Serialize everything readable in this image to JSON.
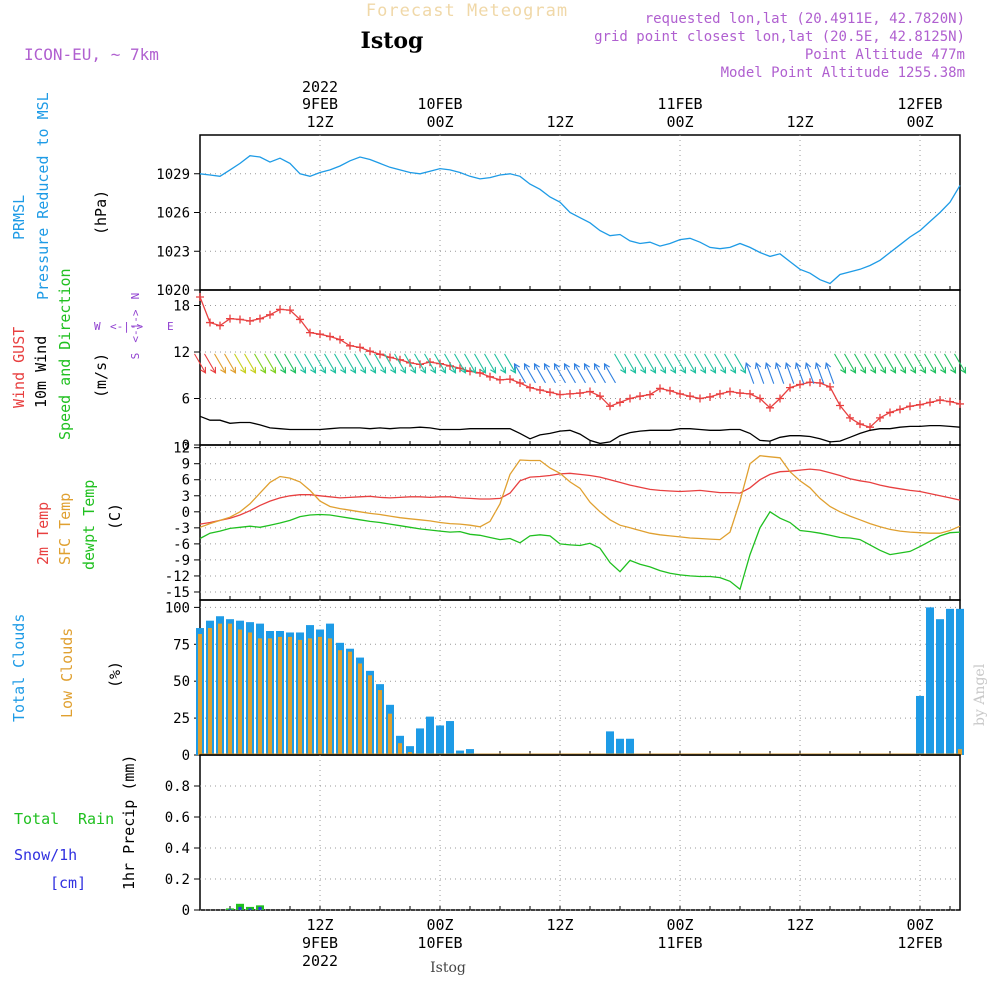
{
  "header": {
    "title": "Forecast Meteogram",
    "location": "Istog",
    "model": "ICON-EU, ~ 7km",
    "requested": "requested lon,lat (20.4911E, 42.7820N)",
    "grid_point": "grid point closest lon,lat (20.5E, 42.8125N)",
    "point_altitude": "Point Altitude 477m",
    "model_altitude": "Model Point Altitude 1255.38m",
    "credit": "by Angel",
    "footer_location": "Istog"
  },
  "colors": {
    "prmsl": "#1e9be6",
    "gust": "#e84040",
    "wind": "#000000",
    "sfc": "#e0a030",
    "dewpt": "#20c020",
    "total_cloud": "#1e9be6",
    "low_cloud": "#e0a030",
    "rain": "#20c020",
    "snow": "#3030e0",
    "axis_label": "#9040d0"
  },
  "top_time_labels": [
    {
      "hour": "12Z",
      "date": "9FEB",
      "year": "2022",
      "t": 12
    },
    {
      "hour": "00Z",
      "date": "10FEB",
      "year": "",
      "t": 24
    },
    {
      "hour": "12Z",
      "date": "",
      "year": "",
      "t": 36
    },
    {
      "hour": "00Z",
      "date": "11FEB",
      "year": "",
      "t": 48
    },
    {
      "hour": "12Z",
      "date": "",
      "year": "",
      "t": 60
    },
    {
      "hour": "00Z",
      "date": "12FEB",
      "year": "",
      "t": 72
    }
  ],
  "chart_data": [
    {
      "type": "line",
      "title": "PRMSL Pressure Reduced to MSL",
      "ylabel": "(hPa)",
      "ylim": [
        1020,
        1032
      ],
      "yticks": [
        1020,
        1023,
        1026,
        1029
      ],
      "x_hours": [
        0,
        1,
        2,
        3,
        4,
        5,
        6,
        7,
        8,
        9,
        10,
        11,
        12,
        13,
        14,
        15,
        16,
        17,
        18,
        19,
        20,
        21,
        22,
        23,
        24,
        25,
        26,
        27,
        28,
        29,
        30,
        31,
        32,
        33,
        34,
        35,
        36,
        37,
        38,
        39,
        40,
        41,
        42,
        43,
        44,
        45,
        46,
        47,
        48,
        49,
        50,
        51,
        52,
        53,
        54,
        55,
        56,
        57,
        58,
        59,
        60,
        61,
        62,
        63,
        64,
        65,
        66,
        67,
        68,
        69,
        70,
        71,
        72,
        73,
        74,
        75,
        76
      ],
      "series": [
        {
          "name": "PRMSL",
          "values": [
            1029.0,
            1028.9,
            1028.8,
            1029.3,
            1029.8,
            1030.4,
            1030.3,
            1029.9,
            1030.2,
            1029.8,
            1029.0,
            1028.8,
            1029.1,
            1029.3,
            1029.6,
            1030.0,
            1030.3,
            1030.1,
            1029.8,
            1029.5,
            1029.3,
            1029.1,
            1029.0,
            1029.2,
            1029.4,
            1029.3,
            1029.1,
            1028.8,
            1028.6,
            1028.7,
            1028.9,
            1029.0,
            1028.8,
            1028.2,
            1027.8,
            1027.2,
            1026.8,
            1026.0,
            1025.6,
            1025.2,
            1024.6,
            1024.2,
            1024.3,
            1023.8,
            1023.6,
            1023.7,
            1023.4,
            1023.6,
            1023.9,
            1024.0,
            1023.7,
            1023.3,
            1023.2,
            1023.3,
            1023.6,
            1023.3,
            1022.9,
            1022.6,
            1022.8,
            1022.2,
            1021.6,
            1021.3,
            1020.8,
            1020.5,
            1021.2,
            1021.4,
            1021.6,
            1021.9,
            1022.3,
            1022.9,
            1023.5,
            1024.1,
            1024.6,
            1025.3,
            1026.0,
            1026.8,
            1028.1
          ]
        }
      ]
    },
    {
      "type": "line",
      "title": "Wind GUST, 10m Wind Speed and Direction",
      "ylabel": "(m/s)",
      "ylim": [
        0,
        20
      ],
      "yticks": [
        0,
        6,
        12,
        18
      ],
      "compass": {
        "n": "N",
        "s": "S",
        "w": "W",
        "e": "E"
      },
      "x_hours": [
        0,
        1,
        2,
        3,
        4,
        5,
        6,
        7,
        8,
        9,
        10,
        11,
        12,
        13,
        14,
        15,
        16,
        17,
        18,
        19,
        20,
        21,
        22,
        23,
        24,
        25,
        26,
        27,
        28,
        29,
        30,
        31,
        32,
        33,
        34,
        35,
        36,
        37,
        38,
        39,
        40,
        41,
        42,
        43,
        44,
        45,
        46,
        47,
        48,
        49,
        50,
        51,
        52,
        53,
        54,
        55,
        56,
        57,
        58,
        59,
        60,
        61,
        62,
        63,
        64,
        65,
        66,
        67,
        68,
        69,
        70,
        71,
        72,
        73,
        74,
        75,
        76
      ],
      "series": [
        {
          "name": "Wind GUST",
          "values": [
            19.1,
            15.8,
            15.4,
            16.3,
            16.2,
            16.0,
            16.3,
            16.8,
            17.5,
            17.4,
            16.2,
            14.5,
            14.3,
            14.0,
            13.6,
            12.8,
            12.6,
            12.1,
            11.7,
            11.3,
            11.0,
            10.6,
            10.4,
            10.7,
            10.5,
            10.2,
            9.9,
            9.5,
            9.3,
            8.8,
            8.4,
            8.5,
            8.0,
            7.4,
            7.1,
            6.8,
            6.5,
            6.6,
            6.7,
            6.9,
            6.3,
            5.0,
            5.5,
            6.0,
            6.3,
            6.5,
            7.3,
            7.0,
            6.6,
            6.3,
            6.0,
            6.2,
            6.6,
            6.9,
            6.7,
            6.6,
            6.0,
            4.8,
            6.0,
            7.4,
            7.8,
            8.1,
            8.0,
            7.5,
            5.1,
            3.5,
            2.7,
            2.3,
            3.5,
            4.2,
            4.6,
            5.0,
            5.2,
            5.5,
            5.8,
            5.6,
            5.3
          ]
        },
        {
          "name": "10m Wind",
          "values": [
            3.7,
            3.2,
            3.2,
            2.8,
            2.9,
            2.9,
            2.6,
            2.2,
            2.1,
            2.0,
            2.0,
            2.0,
            2.0,
            2.1,
            2.2,
            2.2,
            2.2,
            2.1,
            2.2,
            2.1,
            2.2,
            2.2,
            2.3,
            2.2,
            2.0,
            2.0,
            2.0,
            2.1,
            2.1,
            2.1,
            2.1,
            2.1,
            1.5,
            0.8,
            1.3,
            1.5,
            1.8,
            1.9,
            1.4,
            0.6,
            0.2,
            0.4,
            1.2,
            1.6,
            1.8,
            1.9,
            1.9,
            1.9,
            2.1,
            2.1,
            2.0,
            1.9,
            1.9,
            2.0,
            2.0,
            1.5,
            0.6,
            0.5,
            1.0,
            1.2,
            1.2,
            1.1,
            0.8,
            0.4,
            0.5,
            1.0,
            1.5,
            1.9,
            2.1,
            2.1,
            2.3,
            2.4,
            2.4,
            2.5,
            2.5,
            2.4,
            2.3
          ]
        }
      ]
    },
    {
      "type": "line",
      "title": "2m Temp, SFC Temp, dewpt Temp",
      "ylabel": "(C)",
      "ylim": [
        -16.5,
        12.5
      ],
      "yticks": [
        -15,
        -12,
        -9,
        -6,
        -3,
        0,
        3,
        6,
        9,
        12
      ],
      "x_hours": [
        0,
        1,
        2,
        3,
        4,
        5,
        6,
        7,
        8,
        9,
        10,
        11,
        12,
        13,
        14,
        15,
        16,
        17,
        18,
        19,
        20,
        21,
        22,
        23,
        24,
        25,
        26,
        27,
        28,
        29,
        30,
        31,
        32,
        33,
        34,
        35,
        36,
        37,
        38,
        39,
        40,
        41,
        42,
        43,
        44,
        45,
        46,
        47,
        48,
        49,
        50,
        51,
        52,
        53,
        54,
        55,
        56,
        57,
        58,
        59,
        60,
        61,
        62,
        63,
        64,
        65,
        66,
        67,
        68,
        69,
        70,
        71,
        72,
        73,
        74,
        75,
        76
      ],
      "series": [
        {
          "name": "2m Temp",
          "values": [
            -2.3,
            -2.0,
            -1.6,
            -1.2,
            -0.6,
            0.2,
            1.2,
            2.0,
            2.6,
            3.0,
            3.2,
            3.2,
            3.0,
            2.8,
            2.6,
            2.7,
            2.8,
            2.9,
            2.7,
            2.6,
            2.7,
            2.8,
            2.8,
            2.7,
            2.8,
            2.8,
            2.6,
            2.5,
            2.4,
            2.4,
            2.5,
            3.5,
            5.8,
            6.5,
            6.6,
            6.8,
            7.1,
            7.2,
            7.0,
            6.8,
            6.5,
            6.0,
            5.5,
            5.0,
            4.6,
            4.2,
            4.0,
            3.9,
            3.8,
            3.9,
            4.0,
            3.8,
            3.6,
            3.6,
            3.5,
            4.5,
            6.0,
            7.0,
            7.5,
            7.6,
            7.8,
            8.0,
            7.8,
            7.3,
            6.8,
            6.2,
            5.8,
            5.5,
            5.0,
            4.6,
            4.3,
            4.0,
            3.8,
            3.4,
            3.0,
            2.6,
            2.2
          ]
        },
        {
          "name": "SFC Temp",
          "values": [
            -2.9,
            -2.2,
            -1.6,
            -1.0,
            0.0,
            1.5,
            3.5,
            5.5,
            6.6,
            6.3,
            5.6,
            4.0,
            2.0,
            1.0,
            0.6,
            0.3,
            0.0,
            -0.3,
            -0.5,
            -0.8,
            -1.1,
            -1.3,
            -1.5,
            -1.7,
            -2.0,
            -2.2,
            -2.3,
            -2.5,
            -2.8,
            -1.8,
            1.5,
            7.0,
            9.7,
            9.6,
            9.6,
            8.2,
            7.2,
            5.6,
            4.4,
            1.8,
            0.0,
            -1.5,
            -2.5,
            -3.0,
            -3.5,
            -4.0,
            -4.3,
            -4.5,
            -4.7,
            -4.9,
            -5.0,
            -5.1,
            -5.2,
            -3.8,
            2.0,
            9.0,
            10.5,
            10.3,
            10.1,
            7.5,
            5.8,
            4.5,
            2.5,
            1.0,
            0.0,
            -0.8,
            -1.5,
            -2.2,
            -2.8,
            -3.3,
            -3.6,
            -3.8,
            -3.9,
            -4.0,
            -4.0,
            -3.5,
            -2.7
          ]
        },
        {
          "name": "dewpt Temp",
          "values": [
            -5.0,
            -4.0,
            -3.6,
            -3.1,
            -2.9,
            -2.7,
            -2.9,
            -2.5,
            -2.1,
            -1.6,
            -0.9,
            -0.6,
            -0.5,
            -0.6,
            -0.9,
            -1.2,
            -1.5,
            -1.8,
            -2.0,
            -2.3,
            -2.6,
            -2.9,
            -3.2,
            -3.4,
            -3.6,
            -3.8,
            -3.7,
            -4.2,
            -4.4,
            -4.8,
            -5.2,
            -5.0,
            -5.8,
            -4.5,
            -4.3,
            -4.5,
            -6.0,
            -6.2,
            -6.3,
            -5.9,
            -6.8,
            -9.5,
            -11.2,
            -9.1,
            -9.8,
            -10.3,
            -11.0,
            -11.5,
            -11.8,
            -12.0,
            -12.1,
            -12.1,
            -12.3,
            -13.0,
            -14.5,
            -8.0,
            -3.0,
            0.0,
            -1.2,
            -2.0,
            -3.5,
            -3.7,
            -4.0,
            -4.4,
            -4.8,
            -4.9,
            -5.2,
            -6.2,
            -7.2,
            -8.0,
            -7.7,
            -7.4,
            -6.5,
            -5.5,
            -4.5,
            -3.9,
            -3.8
          ]
        }
      ]
    },
    {
      "type": "bar",
      "title": "Total Clouds, Low Clouds",
      "ylabel": "(%)",
      "ylim": [
        0,
        105
      ],
      "yticks": [
        0,
        25,
        50,
        75,
        100
      ],
      "x_hours": [
        0,
        1,
        2,
        3,
        4,
        5,
        6,
        7,
        8,
        9,
        10,
        11,
        12,
        13,
        14,
        15,
        16,
        17,
        18,
        19,
        20,
        21,
        22,
        23,
        24,
        25,
        26,
        27,
        28,
        29,
        30,
        31,
        32,
        33,
        34,
        35,
        36,
        37,
        38,
        39,
        40,
        41,
        42,
        43,
        44,
        45,
        46,
        47,
        48,
        49,
        50,
        51,
        52,
        53,
        54,
        55,
        56,
        57,
        58,
        59,
        60,
        61,
        62,
        63,
        64,
        65,
        66,
        67,
        68,
        69,
        70,
        71,
        72,
        73,
        74,
        75,
        76
      ],
      "series": [
        {
          "name": "Total Clouds",
          "values": [
            86,
            91,
            94,
            92,
            91,
            90,
            89,
            84,
            84,
            83,
            83,
            88,
            85,
            89,
            76,
            72,
            66,
            57,
            48,
            34,
            13,
            6,
            18,
            26,
            20,
            23,
            3,
            4,
            0,
            0,
            0,
            0,
            0,
            0,
            0,
            0,
            0,
            0,
            0,
            0,
            0,
            16,
            11,
            11,
            0,
            0,
            0,
            0,
            0,
            0,
            0,
            0,
            0,
            0,
            0,
            0,
            0,
            0,
            0,
            0,
            0,
            0,
            0,
            0,
            0,
            0,
            0,
            0,
            0,
            0,
            0,
            0,
            40,
            100,
            92,
            99,
            99
          ]
        },
        {
          "name": "Low Clouds",
          "values": [
            82,
            86,
            89,
            89,
            85,
            83,
            79,
            79,
            80,
            80,
            78,
            79,
            80,
            79,
            71,
            70,
            62,
            54,
            44,
            28,
            8,
            2,
            0,
            0,
            0,
            0,
            0,
            0,
            0,
            0,
            0,
            0,
            0,
            0,
            0,
            0,
            0,
            0,
            0,
            0,
            0,
            0,
            0,
            0,
            0,
            0,
            0,
            0,
            0,
            0,
            0,
            0,
            0,
            0,
            0,
            0,
            0,
            0,
            0,
            0,
            0,
            0,
            0,
            0,
            0,
            0,
            0,
            0,
            0,
            0,
            0,
            0,
            0,
            0,
            0,
            0,
            4
          ]
        }
      ]
    },
    {
      "type": "bar",
      "title": "Total Rain, Snow/1h [cm]",
      "ylabel": "1hr Precip (mm)",
      "ylim": [
        0,
        1.0
      ],
      "yticks": [
        0,
        0.2,
        0.4,
        0.6,
        0.8
      ],
      "x_hours": [
        3,
        4,
        5,
        6
      ],
      "series": [
        {
          "name": "Total Rain",
          "values": [
            0.01,
            0.04,
            0.02,
            0.03
          ]
        },
        {
          "name": "Snow/1h",
          "values": [
            0.005,
            0.02,
            0.01,
            0.02
          ]
        }
      ]
    }
  ],
  "panel_labels": {
    "p1": {
      "a": "PRMSL",
      "b": "Pressure Reduced to MSL",
      "unit": "(hPa)"
    },
    "p2": {
      "a": "Wind GUST",
      "b": "10m Wind",
      "c": "Speed and Direction",
      "unit": "(m/s)"
    },
    "p3": {
      "a": "2m Temp",
      "b": "SFC Temp",
      "c": "dewpt Temp",
      "unit": "(C)"
    },
    "p4": {
      "a": "Total Clouds",
      "b": "Low Clouds",
      "unit": "(%)"
    },
    "p5": {
      "a": "Total",
      "b": "Rain",
      "c": "Snow/1h",
      "d": "[cm]",
      "unit": "1hr Precip (mm)"
    }
  }
}
